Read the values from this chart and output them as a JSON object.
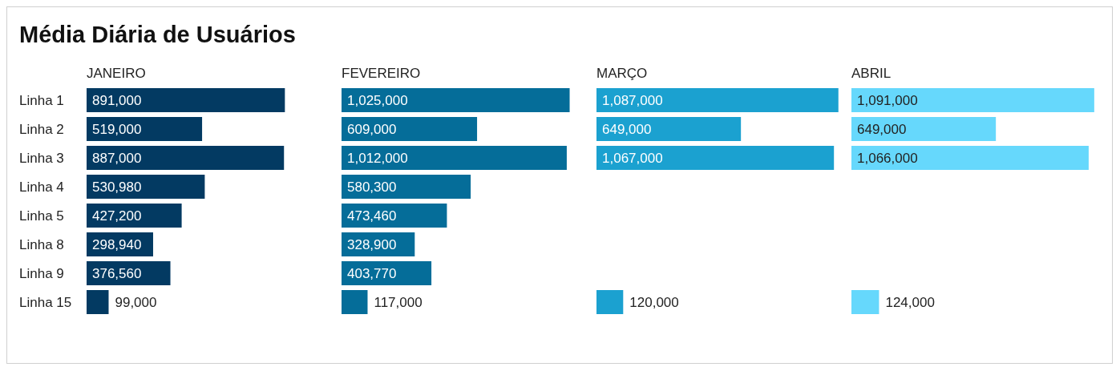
{
  "chart_data": [
    {
      "type": "bar",
      "orientation": "horizontal",
      "title": "Média Diária de Usuários",
      "subtitle": "JANEIRO",
      "categories": [
        "Linha 1",
        "Linha 2",
        "Linha 3",
        "Linha 4",
        "Linha 5",
        "Linha 8",
        "Linha 9",
        "Linha 15"
      ],
      "color": "#033a62",
      "values": [
        891000,
        519000,
        887000,
        530980,
        427200,
        298940,
        376560,
        99000
      ],
      "value_labels": [
        "891,000",
        "519,000",
        "887,000",
        "530,980",
        "427,200",
        "298,940",
        "376,560",
        "99,000"
      ],
      "tick_labels": "y"
    },
    {
      "type": "bar",
      "orientation": "horizontal",
      "subtitle": "FEVEREIRO",
      "color": "#056d99",
      "values": [
        1025000,
        609000,
        1012000,
        580300,
        473460,
        328900,
        403770,
        117000
      ],
      "value_labels": [
        "1,025,000",
        "609,000",
        "1,012,000",
        "580,300",
        "473,460",
        "328,900",
        "403,770",
        "117,000"
      ],
      "tick_labels": false
    },
    {
      "type": "bar",
      "orientation": "horizontal",
      "subtitle": "MARÇO",
      "color": "#1ba1d0",
      "values": [
        1087000,
        649000,
        1067000,
        null,
        null,
        null,
        null,
        120000
      ],
      "value_labels": [
        "1,087,000",
        "649,000",
        "1,067,000",
        null,
        null,
        null,
        null,
        "120,000"
      ],
      "tick_labels": false
    },
    {
      "type": "bar",
      "orientation": "horizontal",
      "subtitle": "ABRIL",
      "color": "#66d8fc",
      "values": [
        1091000,
        649000,
        1066000,
        null,
        null,
        null,
        null,
        124000
      ],
      "value_labels": [
        "1,091,000",
        "649,000",
        "1,066,000",
        null,
        null,
        null,
        null,
        "124,000"
      ],
      "tick_labels": false
    }
  ]
}
